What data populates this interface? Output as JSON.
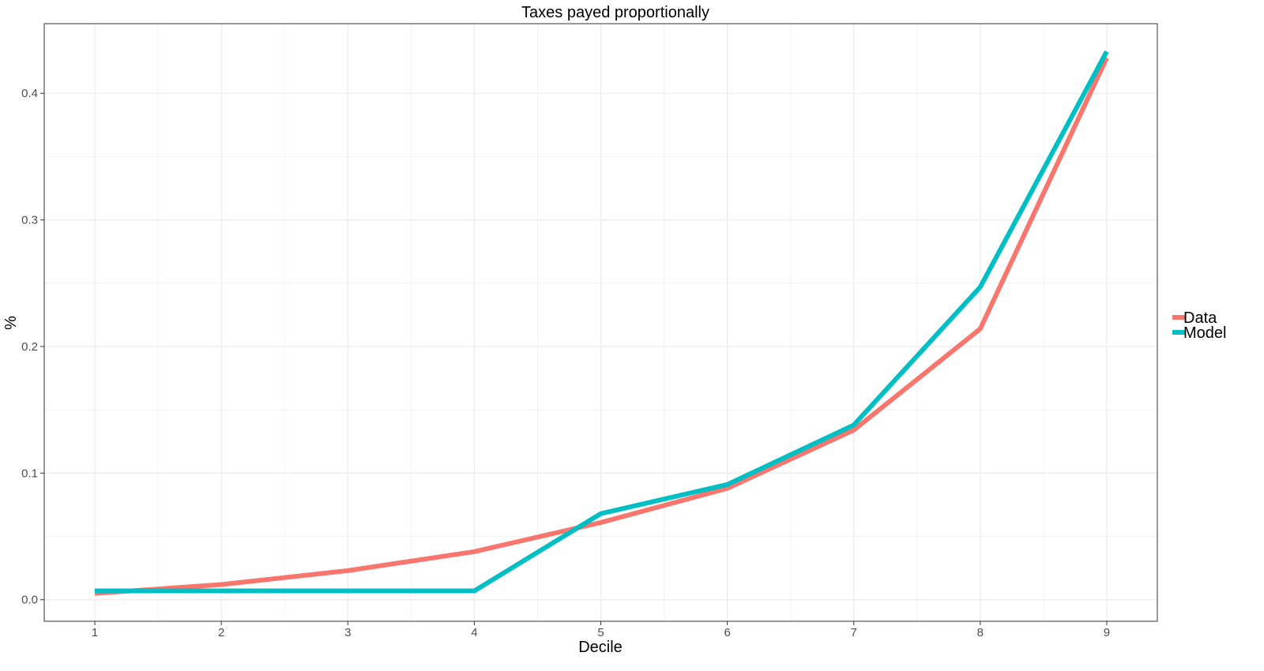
{
  "chart_data": {
    "type": "line",
    "title": "Taxes payed proportionally",
    "xlabel": "Decile",
    "ylabel": "%",
    "x": [
      1,
      2,
      3,
      4,
      5,
      6,
      7,
      8,
      9
    ],
    "x_ticks": [
      "1",
      "2",
      "3",
      "4",
      "5",
      "6",
      "7",
      "8",
      "9"
    ],
    "y_ticks": [
      "0.0",
      "0.1",
      "0.2",
      "0.3",
      "0.4"
    ],
    "y_tick_values": [
      0.0,
      0.1,
      0.2,
      0.3,
      0.4
    ],
    "xlim": [
      0.6,
      9.4
    ],
    "ylim": [
      -0.017,
      0.455
    ],
    "grid": true,
    "legend_position": "right",
    "series": [
      {
        "name": "Data",
        "color": "#F8766D",
        "values": [
          0.005,
          0.012,
          0.023,
          0.038,
          0.061,
          0.088,
          0.134,
          0.214,
          0.428
        ]
      },
      {
        "name": "Model",
        "color": "#00BFC4",
        "values": [
          0.007,
          0.007,
          0.007,
          0.007,
          0.068,
          0.091,
          0.138,
          0.247,
          0.433
        ]
      }
    ]
  }
}
